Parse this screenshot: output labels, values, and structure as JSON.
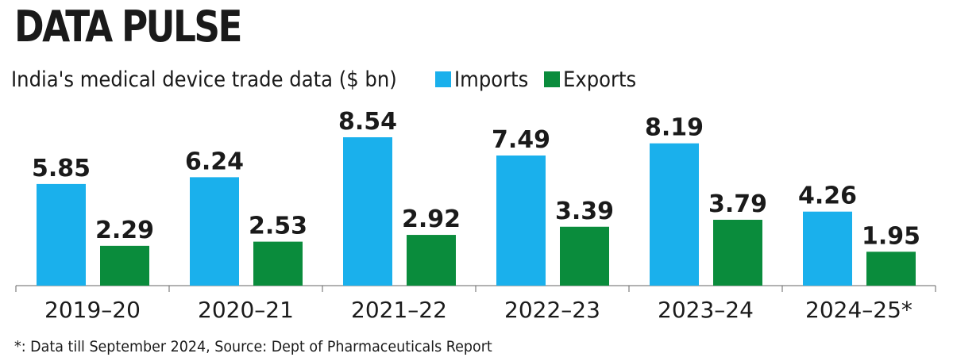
{
  "chart_data": {
    "type": "bar",
    "title": "DATA PULSE",
    "subtitle": "India's medical device trade data ($ bn)",
    "categories": [
      "2019-20",
      "2020-21",
      "2021-22",
      "2022-23",
      "2023-24",
      "2024-25*"
    ],
    "series": [
      {
        "name": "Imports",
        "color": "#1ab0ec",
        "values": [
          5.85,
          6.24,
          8.54,
          7.49,
          8.19,
          4.26
        ]
      },
      {
        "name": "Exports",
        "color": "#0a8c3c",
        "values": [
          2.29,
          2.53,
          2.92,
          3.39,
          3.79,
          1.95
        ]
      }
    ],
    "value_labels": {
      "Imports": [
        "5.85",
        "6.24",
        "8.54",
        "7.49",
        "8.19",
        "4.26"
      ],
      "Exports": [
        "2.29",
        "2.53",
        "2.92",
        "3.39",
        "3.79",
        "1.95"
      ]
    },
    "tick_labels": [
      "2019–20",
      "2020–21",
      "2021–22",
      "2022–23",
      "2023–24",
      "2024–25*"
    ],
    "ylim": [
      0,
      8.54
    ],
    "legend_placement": "top, after subtitle",
    "grid": false,
    "footnote": "*: Data till September 2024, Source: Dept of Pharmaceuticals Report"
  }
}
